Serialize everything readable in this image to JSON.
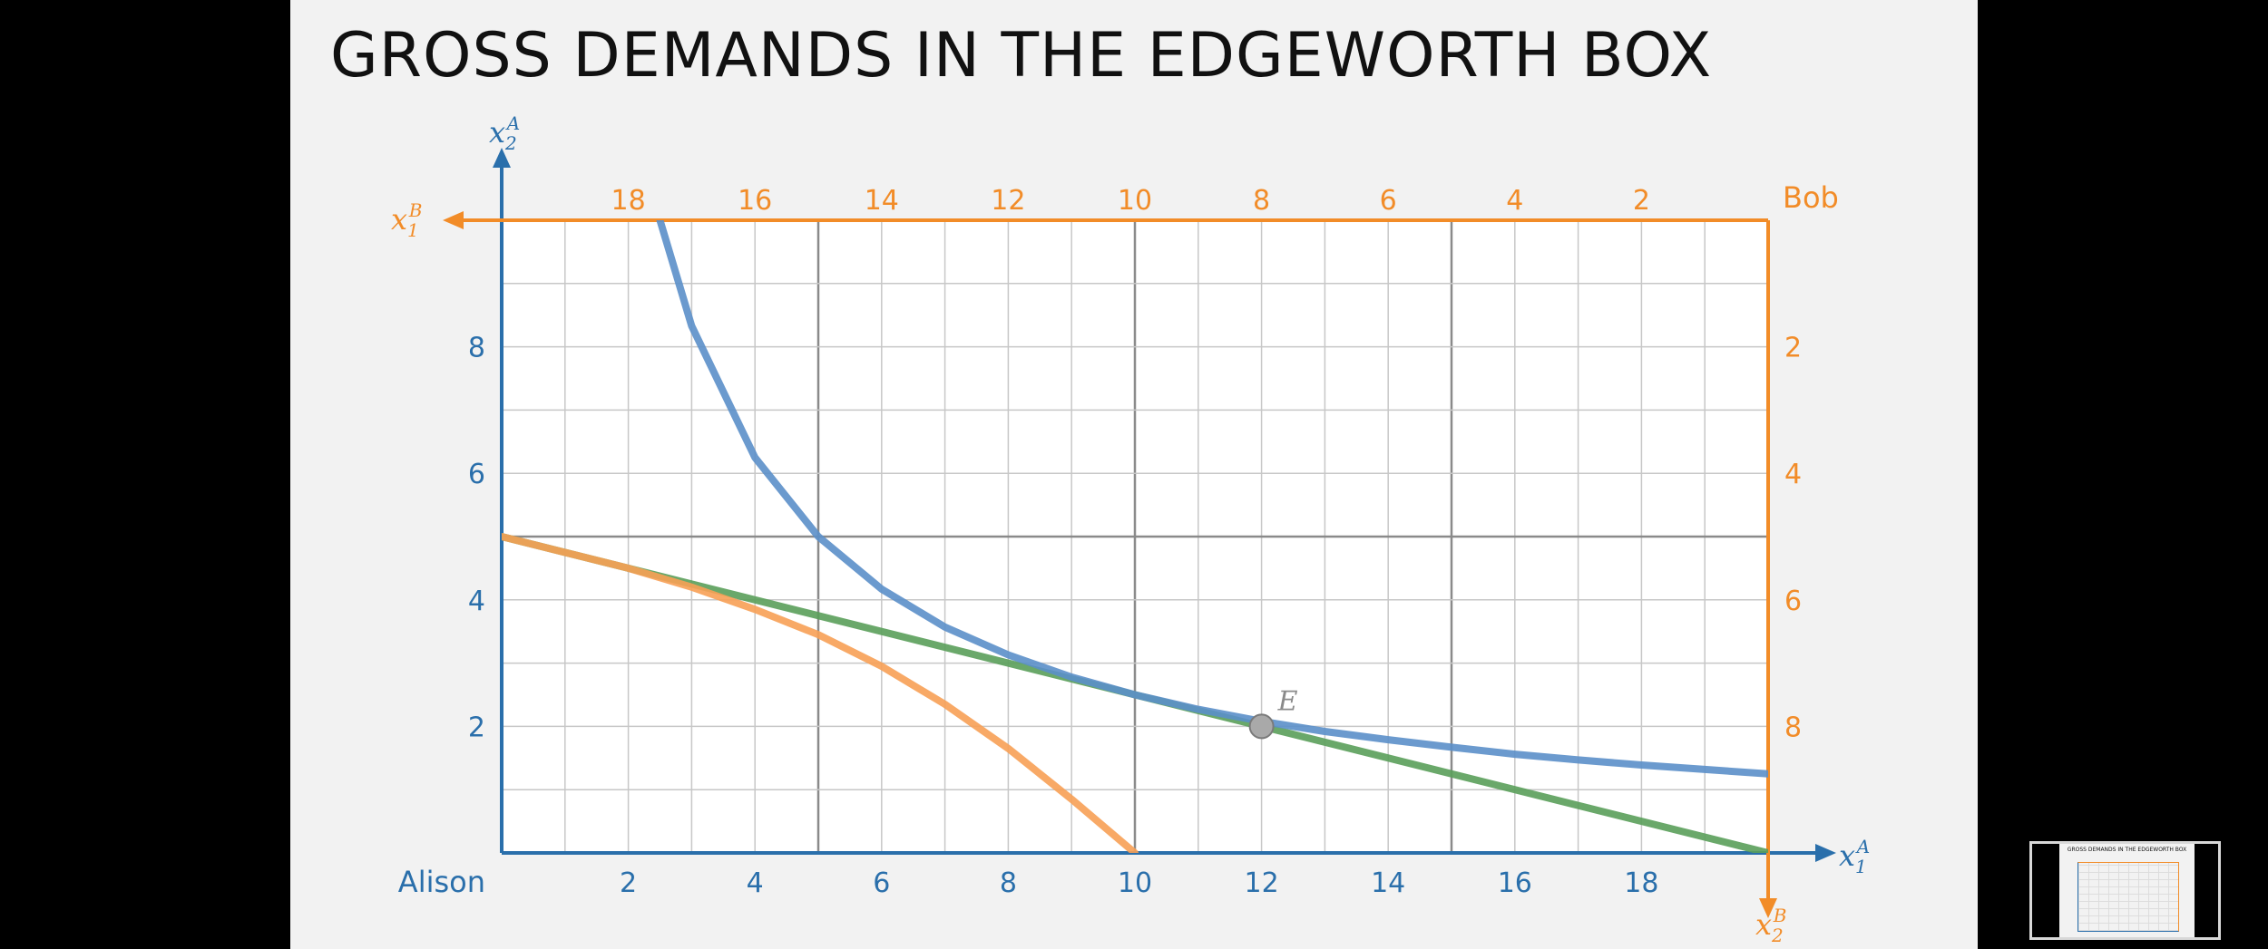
{
  "slide": {
    "title": "GROSS DEMANDS IN THE EDGEWORTH BOX"
  },
  "colors": {
    "alison_axis": "#2a6fab",
    "bob_axis": "#f28c28",
    "indifference_A": "#5b8fc9",
    "indifference_B": "#f7a055",
    "budget_line": "#5a9e5a",
    "point": "#a9a9a9"
  },
  "chart_data": {
    "type": "line",
    "title": "GROSS DEMANDS IN THE EDGEWORTH BOX",
    "xlim": [
      0,
      20
    ],
    "ylim": [
      0,
      10
    ],
    "alison": {
      "origin_label": "Alison",
      "x_axis_label": "x1A",
      "y_axis_label": "x2A",
      "x_ticks": [
        2,
        4,
        6,
        8,
        10,
        12,
        14,
        16,
        18
      ],
      "y_ticks": [
        2,
        4,
        6,
        8
      ]
    },
    "bob": {
      "origin_label": "Bob",
      "x_axis_label": "x1B",
      "y_axis_label": "x2B",
      "x_ticks": [
        18,
        16,
        14,
        12,
        10,
        8,
        6,
        4,
        2
      ],
      "y_ticks": [
        2,
        4,
        6,
        8
      ]
    },
    "grid": true,
    "series": [
      {
        "id": "alison_indifference",
        "x": [
          2.5,
          3,
          4,
          5,
          6,
          7,
          8,
          9,
          10,
          11,
          12,
          13,
          14,
          15,
          16,
          17,
          18,
          19,
          20
        ],
        "y": [
          10.0,
          8.33,
          6.25,
          5.0,
          4.17,
          3.57,
          3.13,
          2.78,
          2.5,
          2.27,
          2.08,
          1.92,
          1.79,
          1.67,
          1.56,
          1.47,
          1.39,
          1.32,
          1.25
        ]
      },
      {
        "id": "bob_indifference",
        "x": [
          0,
          1,
          2,
          3,
          4,
          5,
          6,
          7,
          8,
          9,
          10
        ],
        "y": [
          5.0,
          4.75,
          4.5,
          4.2,
          3.85,
          3.45,
          2.95,
          2.35,
          1.65,
          0.85,
          0.0
        ]
      },
      {
        "id": "budget_line",
        "x": [
          0,
          20
        ],
        "y": [
          5,
          0
        ]
      }
    ],
    "points": [
      {
        "label": "E",
        "x": 12,
        "y": 2
      }
    ]
  }
}
